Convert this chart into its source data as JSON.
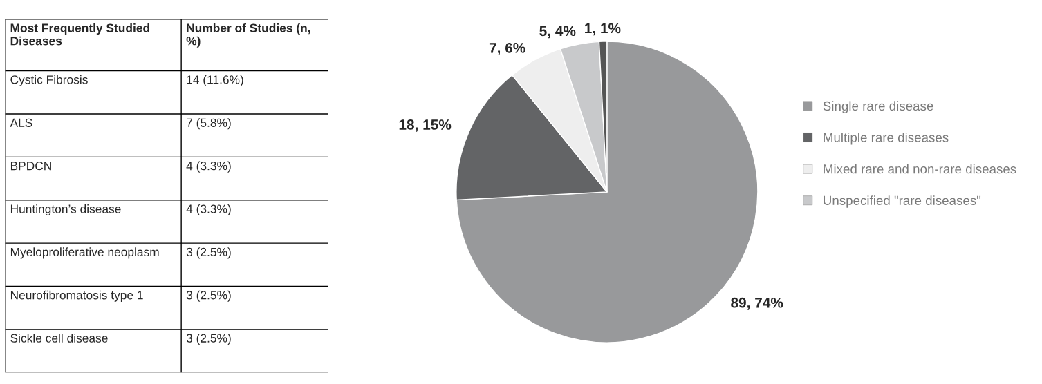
{
  "chart_data": [
    {
      "type": "other",
      "annotations": [
        "Most Frequently Studied Diseases",
        "Number of Studies (n, %)",
        "Cystic Fibrosis",
        "14 (11.6%)",
        "ALS",
        "7 (5.8%)",
        "BPDCN",
        "4 (3.3%)",
        "Huntington’s disease",
        "4 (3.3%)",
        "Myeloproliferative neoplasm",
        "3 (2.5%)",
        "Neurofibromatosis type 1",
        "3 (2.5%)",
        "Sickle cell disease",
        "3 (2.5%)"
      ]
    },
    {
      "type": "pie",
      "categories": [
        "Single rare disease",
        "Multiple rare diseases",
        "Mixed rare and non-rare diseases",
        "Unspecified \"rare diseases\"",
        null
      ],
      "values": [
        89,
        18,
        7,
        5,
        1
      ],
      "colors": [
        "#98999b",
        "#636466",
        "#eeeeee",
        "#c8c9cb",
        "#555555"
      ],
      "value_labels": [
        "89, 74%",
        "18, 15%",
        "7, 6%",
        "5, 4%",
        "1, 1%"
      ],
      "legend": "right"
    }
  ]
}
